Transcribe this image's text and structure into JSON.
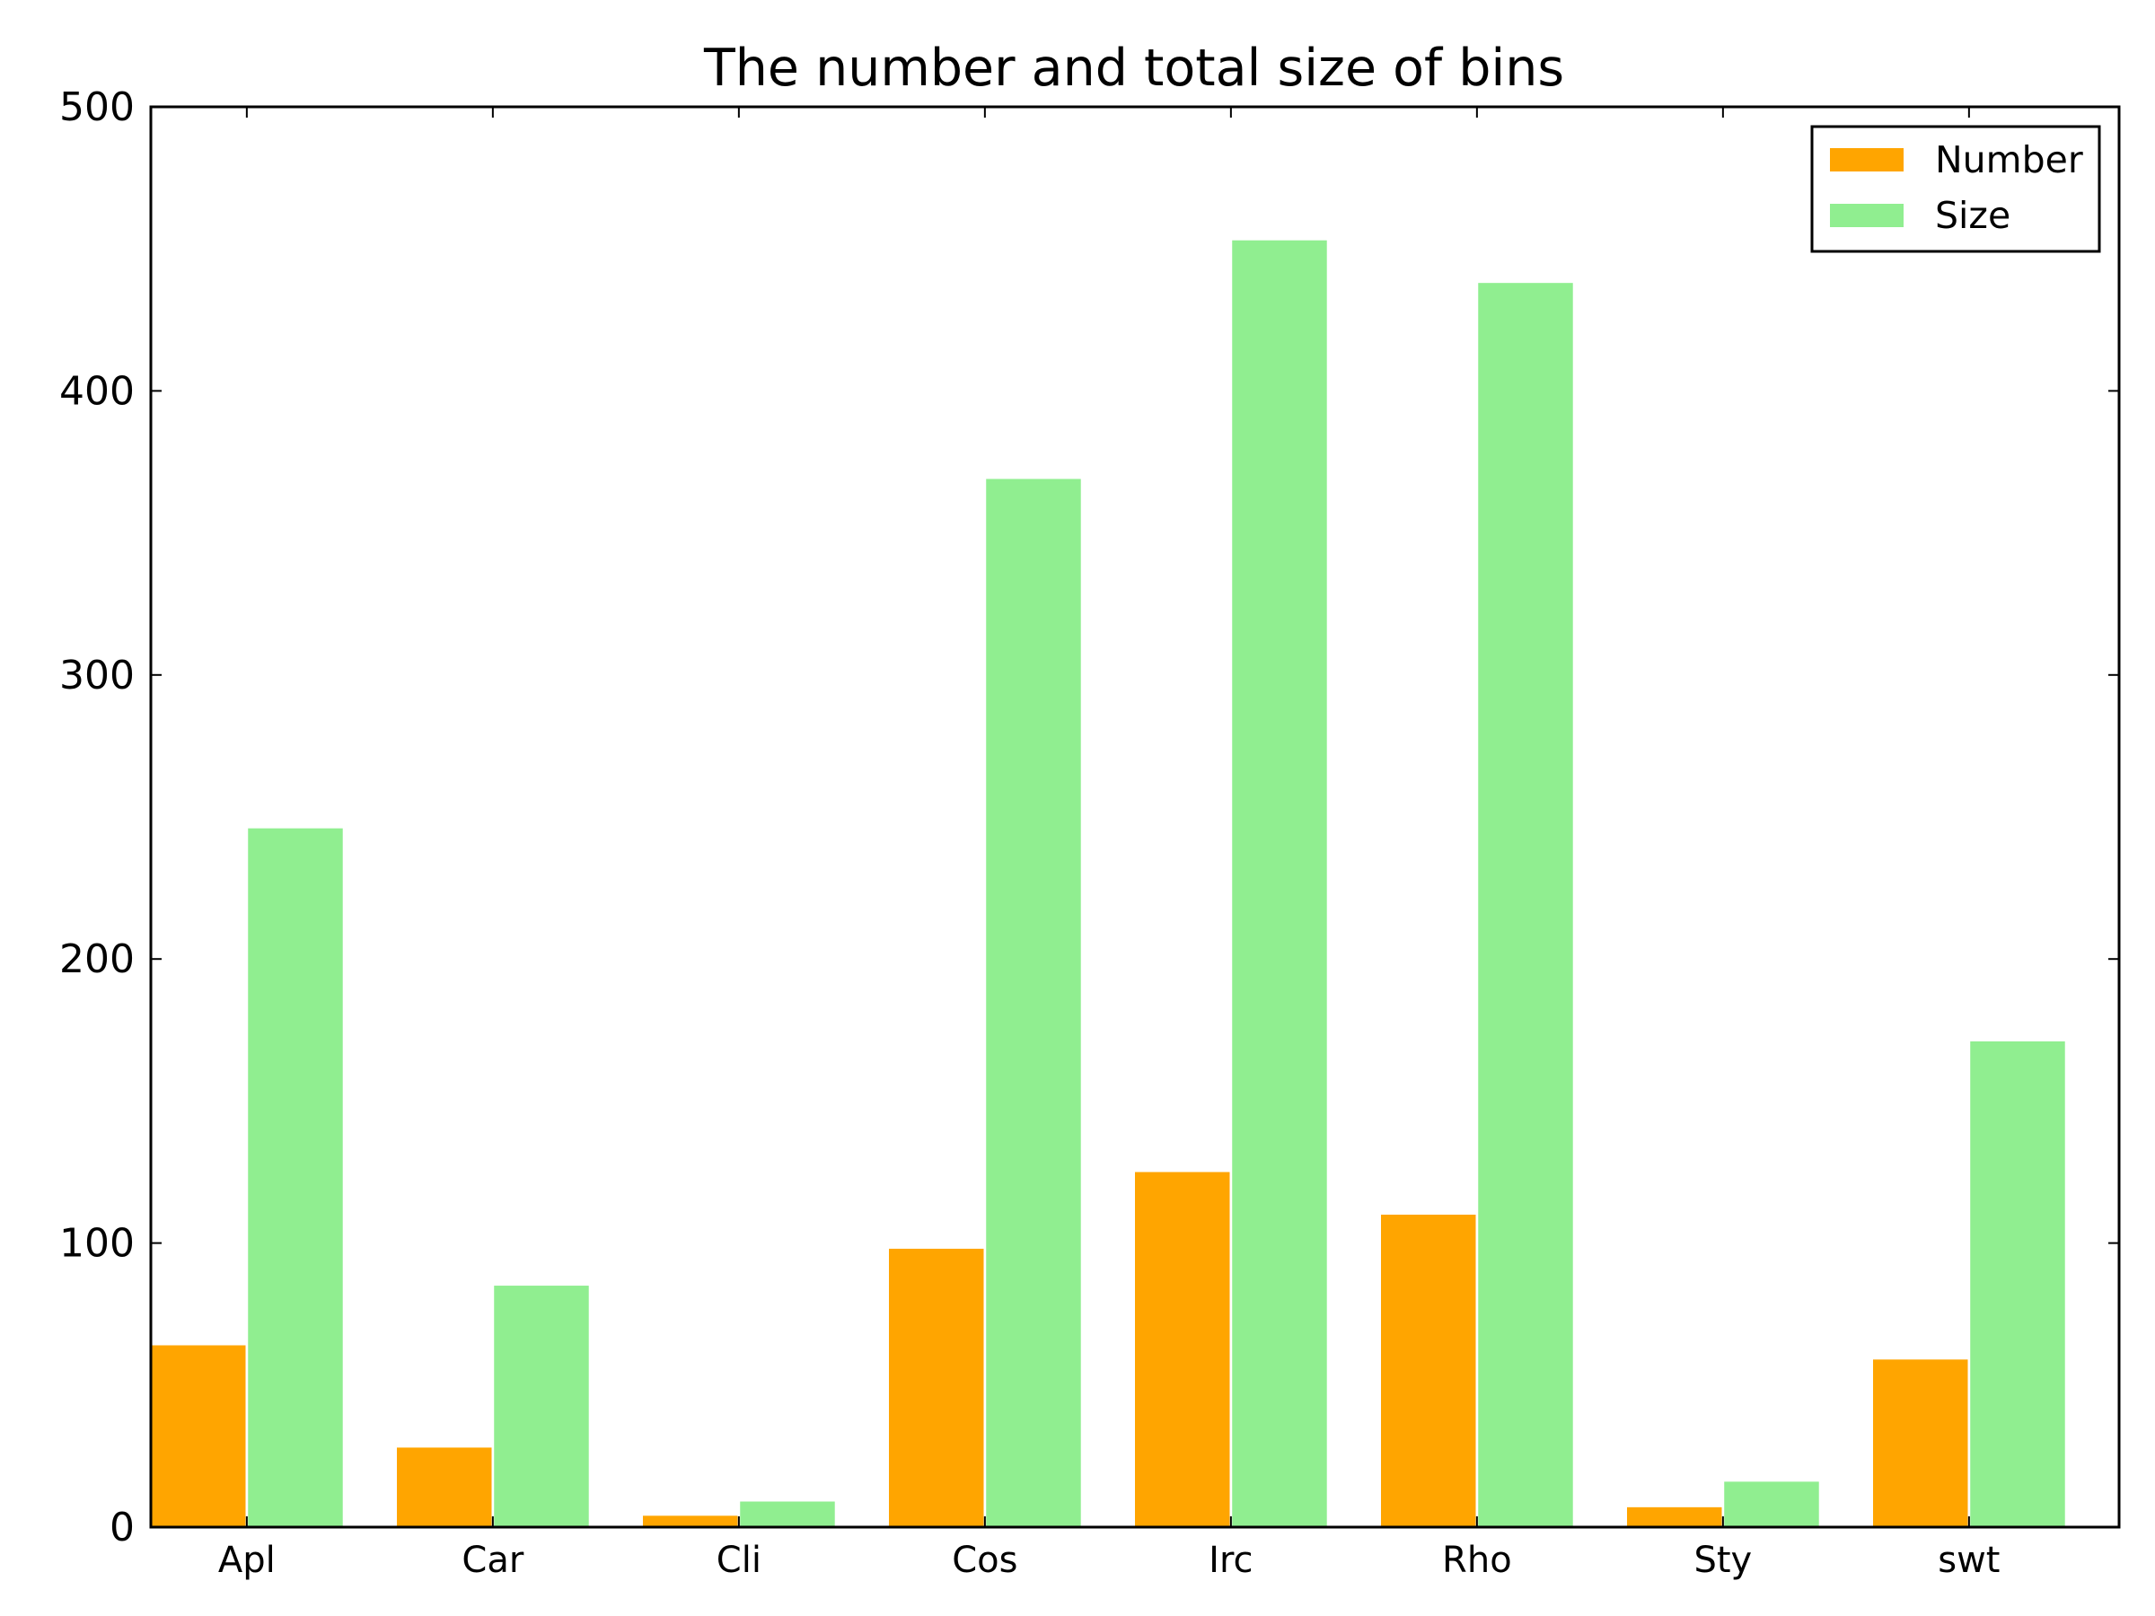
{
  "chart_data": {
    "type": "bar",
    "title": "The number and total size of bins",
    "xlabel": "",
    "ylabel": "",
    "categories": [
      "Apl",
      "Car",
      "Cli",
      "Cos",
      "Irc",
      "Rho",
      "Sty",
      "swt"
    ],
    "series": [
      {
        "name": "Number",
        "color": "#ffa500",
        "values": [
          64,
          28,
          4,
          98,
          125,
          110,
          7,
          59
        ]
      },
      {
        "name": "Size",
        "color": "#90ee90",
        "values": [
          246,
          85,
          9,
          369,
          453,
          438,
          16,
          171
        ]
      }
    ],
    "ylim": [
      0,
      500
    ],
    "yticks": [
      0,
      100,
      200,
      300,
      400,
      500
    ],
    "grid": false,
    "legend_position": "top-right"
  }
}
